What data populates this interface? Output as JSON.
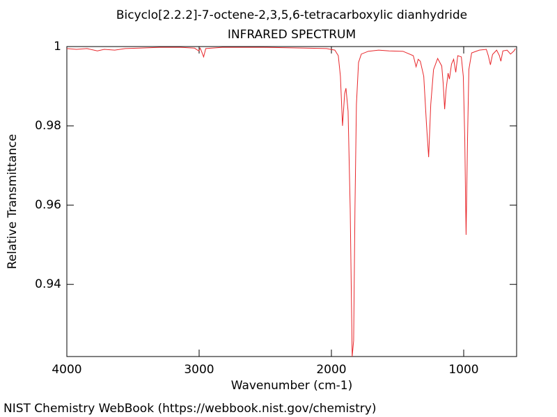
{
  "chart_data": {
    "type": "line",
    "title": "Bicyclo[2.2.2]-7-octene-2,3,5,6-tetracarboxylic dianhydride",
    "subtitle": "INFRARED SPECTRUM",
    "x_label": "Wavenumber (cm-1)",
    "y_label": "Relative Transmittance",
    "source": "NIST Chemistry WebBook (https://webbook.nist.gov/chemistry)",
    "color": "#e8262a",
    "xlim": [
      4000,
      600
    ],
    "ylim": [
      0.9218,
      1
    ],
    "xticks": [
      1000,
      2000,
      3000,
      4000
    ],
    "yticks": [
      0.94,
      0.96,
      0.98,
      1
    ],
    "x": [
      4000,
      3927,
      3848,
      3769,
      3717,
      3638,
      3559,
      3454,
      3297,
      3139,
      3034,
      3003,
      2992,
      2982,
      2966,
      2950,
      2824,
      2509,
      2194,
      2037,
      1974,
      1948,
      1932,
      1916,
      1900,
      1890,
      1874,
      1858,
      1843,
      1832,
      1822,
      1811,
      1795,
      1774,
      1722,
      1643,
      1564,
      1459,
      1381,
      1360,
      1344,
      1328,
      1302,
      1281,
      1265,
      1249,
      1228,
      1197,
      1166,
      1155,
      1144,
      1134,
      1118,
      1108,
      1092,
      1076,
      1060,
      1045,
      1018,
      1003,
      992,
      982,
      971,
      961,
      940,
      882,
      829,
      814,
      798,
      782,
      751,
      730,
      719,
      704,
      672,
      646,
      620,
      609
    ],
    "values": [
      0.9995,
      0.9993,
      0.9995,
      0.9989,
      0.9993,
      0.9991,
      0.9995,
      0.9996,
      0.9998,
      0.9998,
      0.9996,
      0.9989,
      0.9996,
      0.9988,
      0.9974,
      0.9995,
      0.9998,
      0.9998,
      0.9996,
      0.9995,
      0.9991,
      0.9977,
      0.9925,
      0.98,
      0.9881,
      0.9895,
      0.9837,
      0.9591,
      0.9218,
      0.9258,
      0.9591,
      0.9854,
      0.996,
      0.9981,
      0.9988,
      0.9991,
      0.9989,
      0.9988,
      0.9977,
      0.9949,
      0.9968,
      0.9963,
      0.9925,
      0.9802,
      0.9721,
      0.9854,
      0.9942,
      0.997,
      0.9951,
      0.9907,
      0.9842,
      0.9889,
      0.9933,
      0.9918,
      0.9956,
      0.9968,
      0.9935,
      0.9977,
      0.9974,
      0.9925,
      0.9767,
      0.9525,
      0.9767,
      0.9942,
      0.9984,
      0.9991,
      0.9993,
      0.9977,
      0.9954,
      0.998,
      0.9991,
      0.9977,
      0.9963,
      0.9989,
      0.9991,
      0.9981,
      0.9989,
      0.9995
    ]
  }
}
